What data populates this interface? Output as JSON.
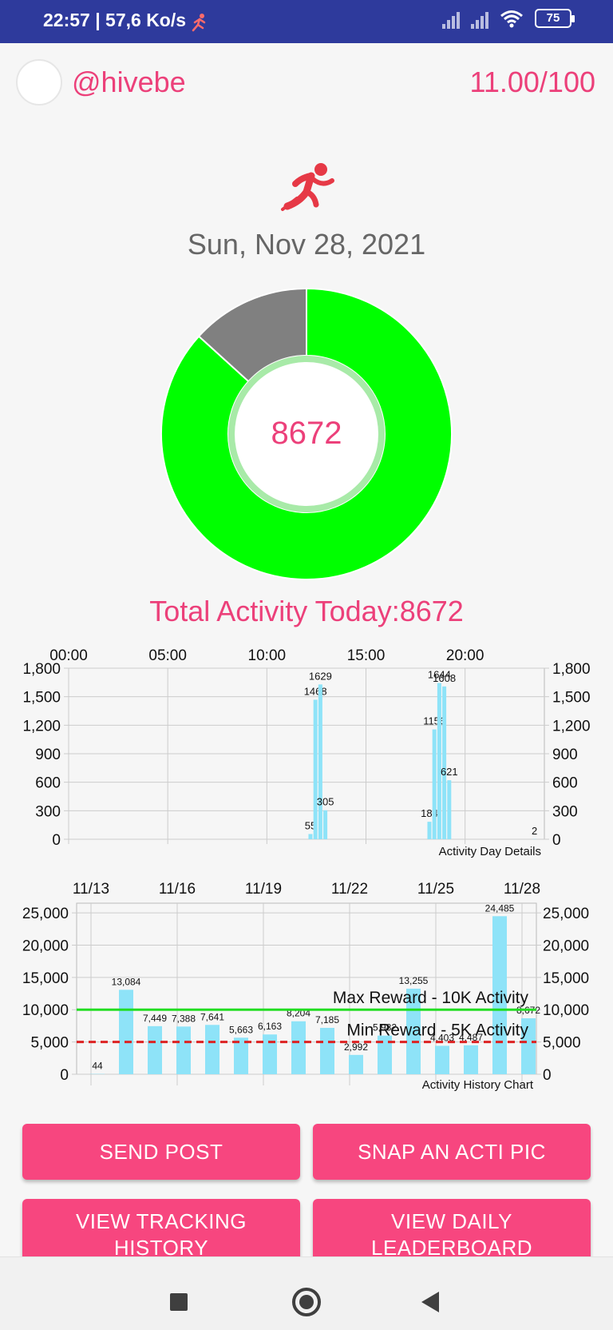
{
  "status_bar": {
    "text": "22:57 | 57,6 Ko/s",
    "battery": "75",
    "icons": [
      "running-man-icon",
      "signal-icon",
      "signal-icon",
      "wifi-icon",
      "battery-icon"
    ]
  },
  "header": {
    "username": "@hivebe",
    "score": "11.00/100"
  },
  "date": "Sun, Nov 28, 2021",
  "donut": {
    "value": "8672",
    "progress_fraction": 0.8672,
    "colors": {
      "progress": "#00ff00",
      "remaining": "#808080",
      "inner_ring": "#a8eaa8"
    }
  },
  "total_activity": "Total Activity Today:8672",
  "chart_data": [
    {
      "type": "bar",
      "description_label": "Activity Day Details",
      "x_ticks": [
        "00:00",
        "05:00",
        "10:00",
        "15:00",
        "20:00"
      ],
      "x_range_hours": [
        0,
        24
      ],
      "y_ticks": [
        "1,800",
        "1,500",
        "1,200",
        "900",
        "600",
        "300",
        "0"
      ],
      "ylim": [
        0,
        1800
      ],
      "bar_color": "#8ee3f8",
      "bars": [
        {
          "hour": 12.2,
          "value": 55,
          "label": "55"
        },
        {
          "hour": 12.45,
          "value": 1468,
          "label": "1468"
        },
        {
          "hour": 12.7,
          "value": 1629,
          "label": "1629"
        },
        {
          "hour": 12.95,
          "value": 305,
          "label": "305"
        },
        {
          "hour": 18.2,
          "value": 184,
          "label": "184"
        },
        {
          "hour": 18.45,
          "value": 1156,
          "label": "1156"
        },
        {
          "hour": 18.7,
          "value": 1644,
          "label": "1644"
        },
        {
          "hour": 18.95,
          "value": 1608,
          "label": "1608"
        },
        {
          "hour": 19.2,
          "value": 621,
          "label": "621"
        },
        {
          "hour": 23.5,
          "value": 2,
          "label": "2"
        }
      ]
    },
    {
      "type": "bar",
      "description_label": "Activity History Chart",
      "x_ticks": [
        "11/13",
        "11/16",
        "11/19",
        "11/22",
        "11/25",
        "11/28"
      ],
      "y_ticks": [
        "25,000",
        "20,000",
        "15,000",
        "10,000",
        "5,000",
        "0"
      ],
      "ylim": [
        0,
        26500
      ],
      "bar_color": "#8ee3f8",
      "bars": [
        {
          "date": "11/13",
          "value": 44,
          "label": "44"
        },
        {
          "date": "11/14",
          "value": 13084,
          "label": "13,084"
        },
        {
          "date": "11/15",
          "value": 7449,
          "label": "7,449"
        },
        {
          "date": "11/16",
          "value": 7388,
          "label": "7,388"
        },
        {
          "date": "11/17",
          "value": 7641,
          "label": "7,641"
        },
        {
          "date": "11/18",
          "value": 5663,
          "label": "5,663"
        },
        {
          "date": "11/19",
          "value": 6163,
          "label": "6,163"
        },
        {
          "date": "11/20",
          "value": 8204,
          "label": "8,204"
        },
        {
          "date": "11/21",
          "value": 7185,
          "label": "7,185"
        },
        {
          "date": "11/22",
          "value": 2992,
          "label": "2,992"
        },
        {
          "date": "11/23",
          "value": 5982,
          "label": "5,982"
        },
        {
          "date": "11/24",
          "value": 13255,
          "label": "13,255"
        },
        {
          "date": "11/25",
          "value": 4403,
          "label": "4,403"
        },
        {
          "date": "11/26",
          "value": 4487,
          "label": "4,487"
        },
        {
          "date": "11/27",
          "value": 24485,
          "label": "24,485"
        },
        {
          "date": "11/28",
          "value": 8672,
          "label": "8,672"
        }
      ],
      "limit_lines": [
        {
          "value": 10000,
          "label": "Max Reward - 10K Activity",
          "color": "#22dd22",
          "style": "solid"
        },
        {
          "value": 5000,
          "label": "Min Reward - 5K Activity",
          "color": "#dd2222",
          "style": "dashed"
        }
      ]
    }
  ],
  "buttons": {
    "send_post": "SEND POST",
    "snap_pic": "SNAP AN ACTI PIC",
    "view_tracking_line1": "VIEW TRACKING",
    "view_tracking_line2": "HISTORY",
    "view_leaderboard_line1": "VIEW DAILY",
    "view_leaderboard_line2": "LEADERBOARD"
  }
}
